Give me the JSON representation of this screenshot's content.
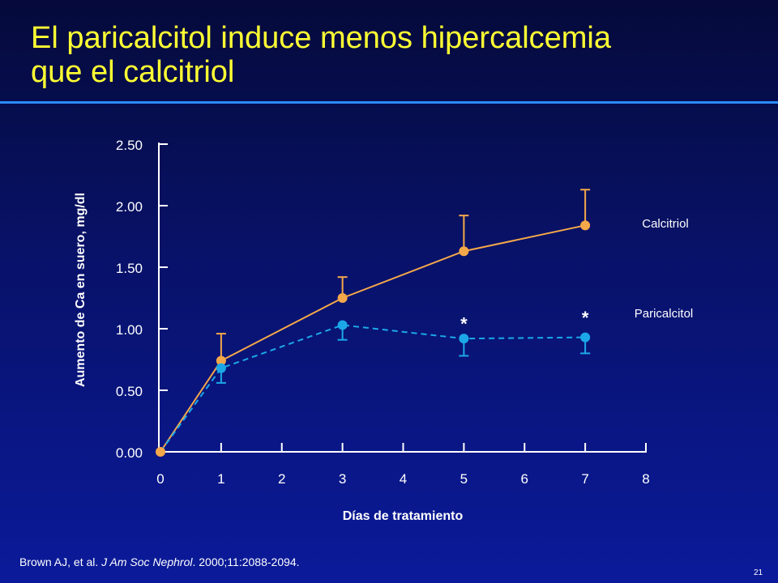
{
  "slide": {
    "title_line1": "El paricalcitol induce menos hipercalcemia",
    "title_line2": "que el calcitriol",
    "citation_authors": "Brown AJ, et al.",
    "citation_journal": "J Am Soc Nephrol",
    "citation_rest": ". 2000;11:2088-2094.",
    "page_number": "21"
  },
  "colors": {
    "title": "#ffff33",
    "calcitriol": "#f5a84a",
    "paricalcitol": "#1ca8e8",
    "axis": "#ffffff",
    "rule": "#2c8cff"
  },
  "chart_data": {
    "type": "line",
    "xlabel": "Días de tratamiento",
    "ylabel": "Aumento de Ca en suero, mg/dl",
    "xlim": [
      0,
      8
    ],
    "ylim": [
      0,
      2.5
    ],
    "x_ticks": [
      "0",
      "1",
      "2",
      "3",
      "4",
      "5",
      "6",
      "7",
      "8"
    ],
    "y_ticks": [
      "0.00",
      "0.50",
      "1.00",
      "1.50",
      "2.00",
      "2.50"
    ],
    "grid": false,
    "legend": "direct labels at right of lines",
    "series": [
      {
        "name": "Calcitriol",
        "style": "solid",
        "x": [
          0,
          1,
          3,
          5,
          7
        ],
        "y": [
          0.0,
          0.74,
          1.25,
          1.63,
          1.84
        ],
        "error_upper": [
          0.0,
          0.96,
          1.42,
          1.92,
          2.13
        ]
      },
      {
        "name": "Paricalcitol",
        "style": "dashed",
        "x": [
          0,
          1,
          3,
          5,
          7
        ],
        "y": [
          0.0,
          0.68,
          1.03,
          0.92,
          0.93
        ],
        "error_lower": [
          0.0,
          0.56,
          0.91,
          0.78,
          0.8
        ]
      }
    ],
    "annotations": [
      {
        "text": "*",
        "x": 5,
        "y": 1.07
      },
      {
        "text": "*",
        "x": 7,
        "y": 1.12
      }
    ]
  }
}
